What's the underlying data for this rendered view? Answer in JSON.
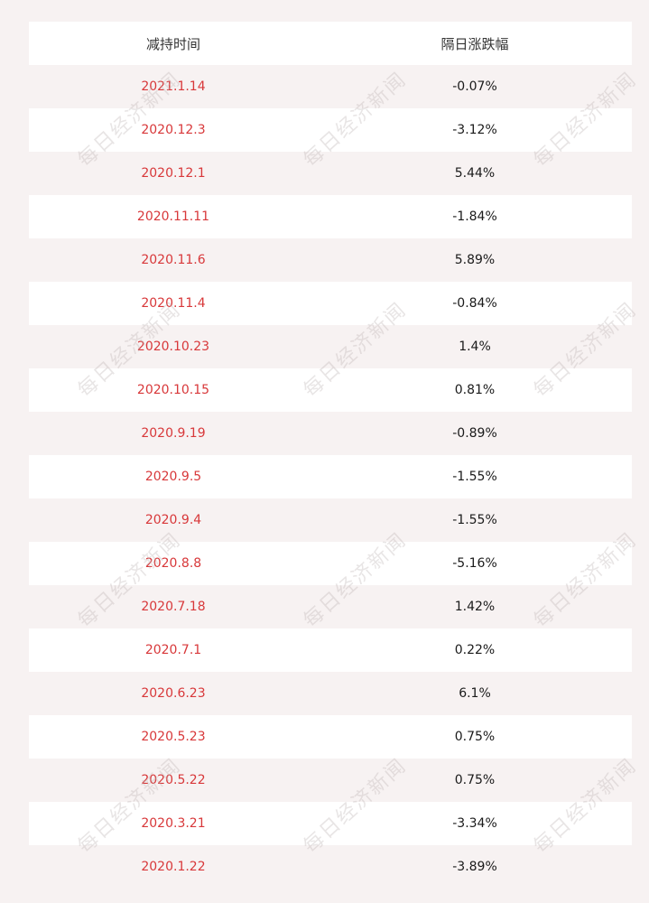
{
  "table": {
    "headers": [
      "减持时间",
      "隔日涨跌幅"
    ],
    "rows": [
      {
        "date": "2021.1.14",
        "change": "-0.07%"
      },
      {
        "date": "2020.12.3",
        "change": "-3.12%"
      },
      {
        "date": "2020.12.1",
        "change": "5.44%"
      },
      {
        "date": "2020.11.11",
        "change": "-1.84%"
      },
      {
        "date": "2020.11.6",
        "change": "5.89%"
      },
      {
        "date": "2020.11.4",
        "change": "-0.84%"
      },
      {
        "date": "2020.10.23",
        "change": "1.4%"
      },
      {
        "date": "2020.10.15",
        "change": "0.81%"
      },
      {
        "date": "2020.9.19",
        "change": "-0.89%"
      },
      {
        "date": "2020.9.5",
        "change": "-1.55%"
      },
      {
        "date": "2020.9.4",
        "change": "-1.55%"
      },
      {
        "date": "2020.8.8",
        "change": "-5.16%"
      },
      {
        "date": "2020.7.18",
        "change": "1.42%"
      },
      {
        "date": "2020.7.1",
        "change": "0.22%"
      },
      {
        "date": "2020.6.23",
        "change": "6.1%"
      },
      {
        "date": "2020.5.23",
        "change": "0.75%"
      },
      {
        "date": "2020.5.22",
        "change": "0.75%"
      },
      {
        "date": "2020.3.21",
        "change": "-3.34%"
      },
      {
        "date": "2020.1.22",
        "change": "-3.89%"
      }
    ]
  },
  "watermark_text": "每日经济新闻",
  "colors": {
    "date_text": "#d8383a",
    "page_background": "#f7f2f2"
  }
}
